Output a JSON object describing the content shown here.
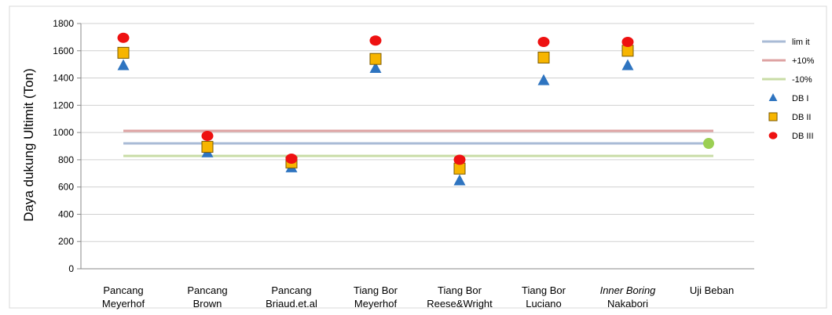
{
  "chart_data": {
    "type": "scatter",
    "ylabel": "Daya dukung Ultimit (Ton)",
    "ylim": [
      0,
      1800
    ],
    "yticks": [
      0,
      200,
      400,
      600,
      800,
      1000,
      1200,
      1400,
      1600,
      1800
    ],
    "grid": true,
    "legend_position": "right",
    "categories": [
      {
        "line1": "Pancang",
        "line2": "Meyerhof",
        "italic1": false
      },
      {
        "line1": "Pancang",
        "line2": "Brown",
        "italic1": false
      },
      {
        "line1": "Pancang",
        "line2": "Briaud.et.al",
        "italic1": false
      },
      {
        "line1": "Tiang Bor",
        "line2": "Meyerhof",
        "italic1": false
      },
      {
        "line1": "Tiang Bor",
        "line2": "Reese&Wright",
        "italic1": false
      },
      {
        "line1": "Tiang Bor",
        "line2": "Luciano",
        "italic1": false
      },
      {
        "line1": "Inner Boring",
        "line2": "Nakabori",
        "italic1": true
      },
      {
        "line1": "Uji Beban",
        "line2": "",
        "italic1": false
      }
    ],
    "lines": [
      {
        "name": "lim it",
        "value": 920,
        "color": "#a9bbd6"
      },
      {
        "name": "+10%",
        "value": 1012,
        "color": "#dea3a3"
      },
      {
        "name": "-10%",
        "value": 828,
        "color": "#c8dca6"
      }
    ],
    "series": [
      {
        "name": "DB I",
        "marker": "triangle",
        "color": "#2e74c0",
        "values": [
          1490,
          850,
          740,
          1470,
          645,
          1380,
          1490,
          null
        ]
      },
      {
        "name": "DB II",
        "marker": "square",
        "color": "#f7b500",
        "values": [
          1585,
          895,
          780,
          1540,
          735,
          1550,
          1600,
          null
        ]
      },
      {
        "name": "DB III",
        "marker": "circle",
        "color": "#ee1111",
        "values": [
          1695,
          975,
          808,
          1675,
          800,
          1665,
          1665,
          null
        ]
      }
    ],
    "test_load": {
      "category_index": 7,
      "value": 920,
      "color": "#9bcf53"
    }
  }
}
